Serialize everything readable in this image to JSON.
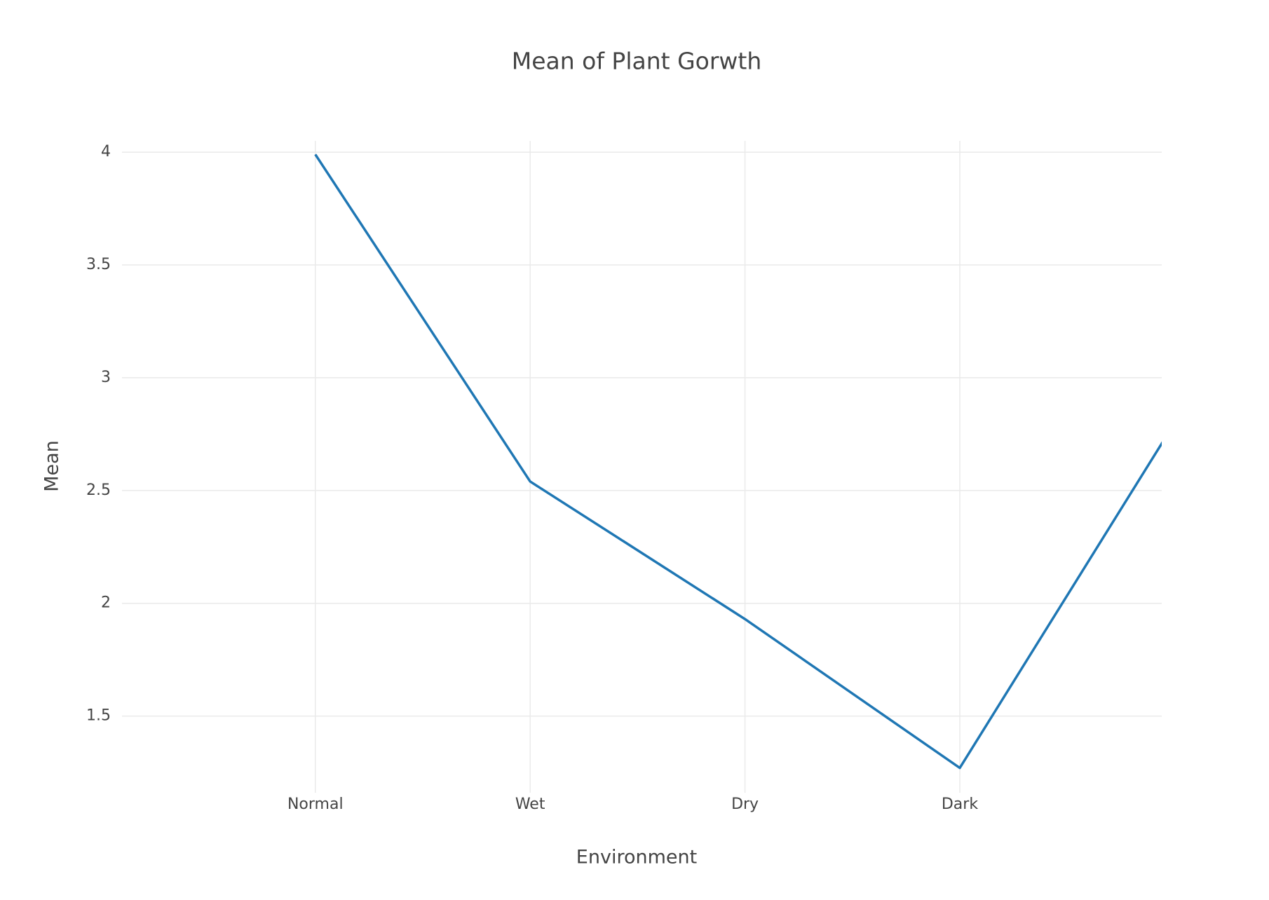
{
  "chart_data": {
    "type": "line",
    "title": "Mean of Plant Gorwth",
    "x_label": "Environment",
    "y_label": "Mean",
    "categories": [
      "Normal",
      "Wet",
      "Dry",
      "Dark",
      null
    ],
    "series": [
      {
        "name": "Mean",
        "color": "#1f77b4",
        "values": [
          3.99,
          2.54,
          1.93,
          1.27,
          2.8
        ]
      }
    ],
    "xlim": [
      -0.9,
      3.94
    ],
    "ylim": [
      1.16,
      4.05
    ],
    "yticks": [
      1.5,
      2,
      2.5,
      3,
      3.5,
      4
    ],
    "grid": true
  }
}
